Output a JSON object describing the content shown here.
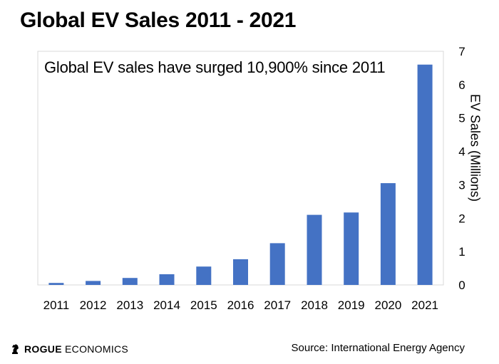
{
  "chart_data": {
    "type": "bar",
    "title": "Global EV Sales 2011 - 2021",
    "annotation": "Global EV sales have surged 10,900% since 2011",
    "categories": [
      "2011",
      "2012",
      "2013",
      "2014",
      "2015",
      "2016",
      "2017",
      "2018",
      "2019",
      "2020",
      "2021"
    ],
    "values": [
      0.06,
      0.12,
      0.21,
      0.32,
      0.55,
      0.77,
      1.25,
      2.1,
      2.17,
      3.05,
      6.6
    ],
    "ylabel": "EV Sales (Millions)",
    "xlabel": "",
    "ylim": [
      0,
      7
    ],
    "yticks": [
      0,
      1,
      2,
      3,
      4,
      5,
      6,
      7
    ],
    "y_axis_position": "right",
    "grid": false,
    "bar_color": "#4472C4"
  },
  "footer": {
    "brand": "ROGUE ECONOMICS",
    "brand_bold": "ROGUE",
    "brand_rest": " ECONOMICS",
    "source": "Source: International Energy Agency"
  }
}
